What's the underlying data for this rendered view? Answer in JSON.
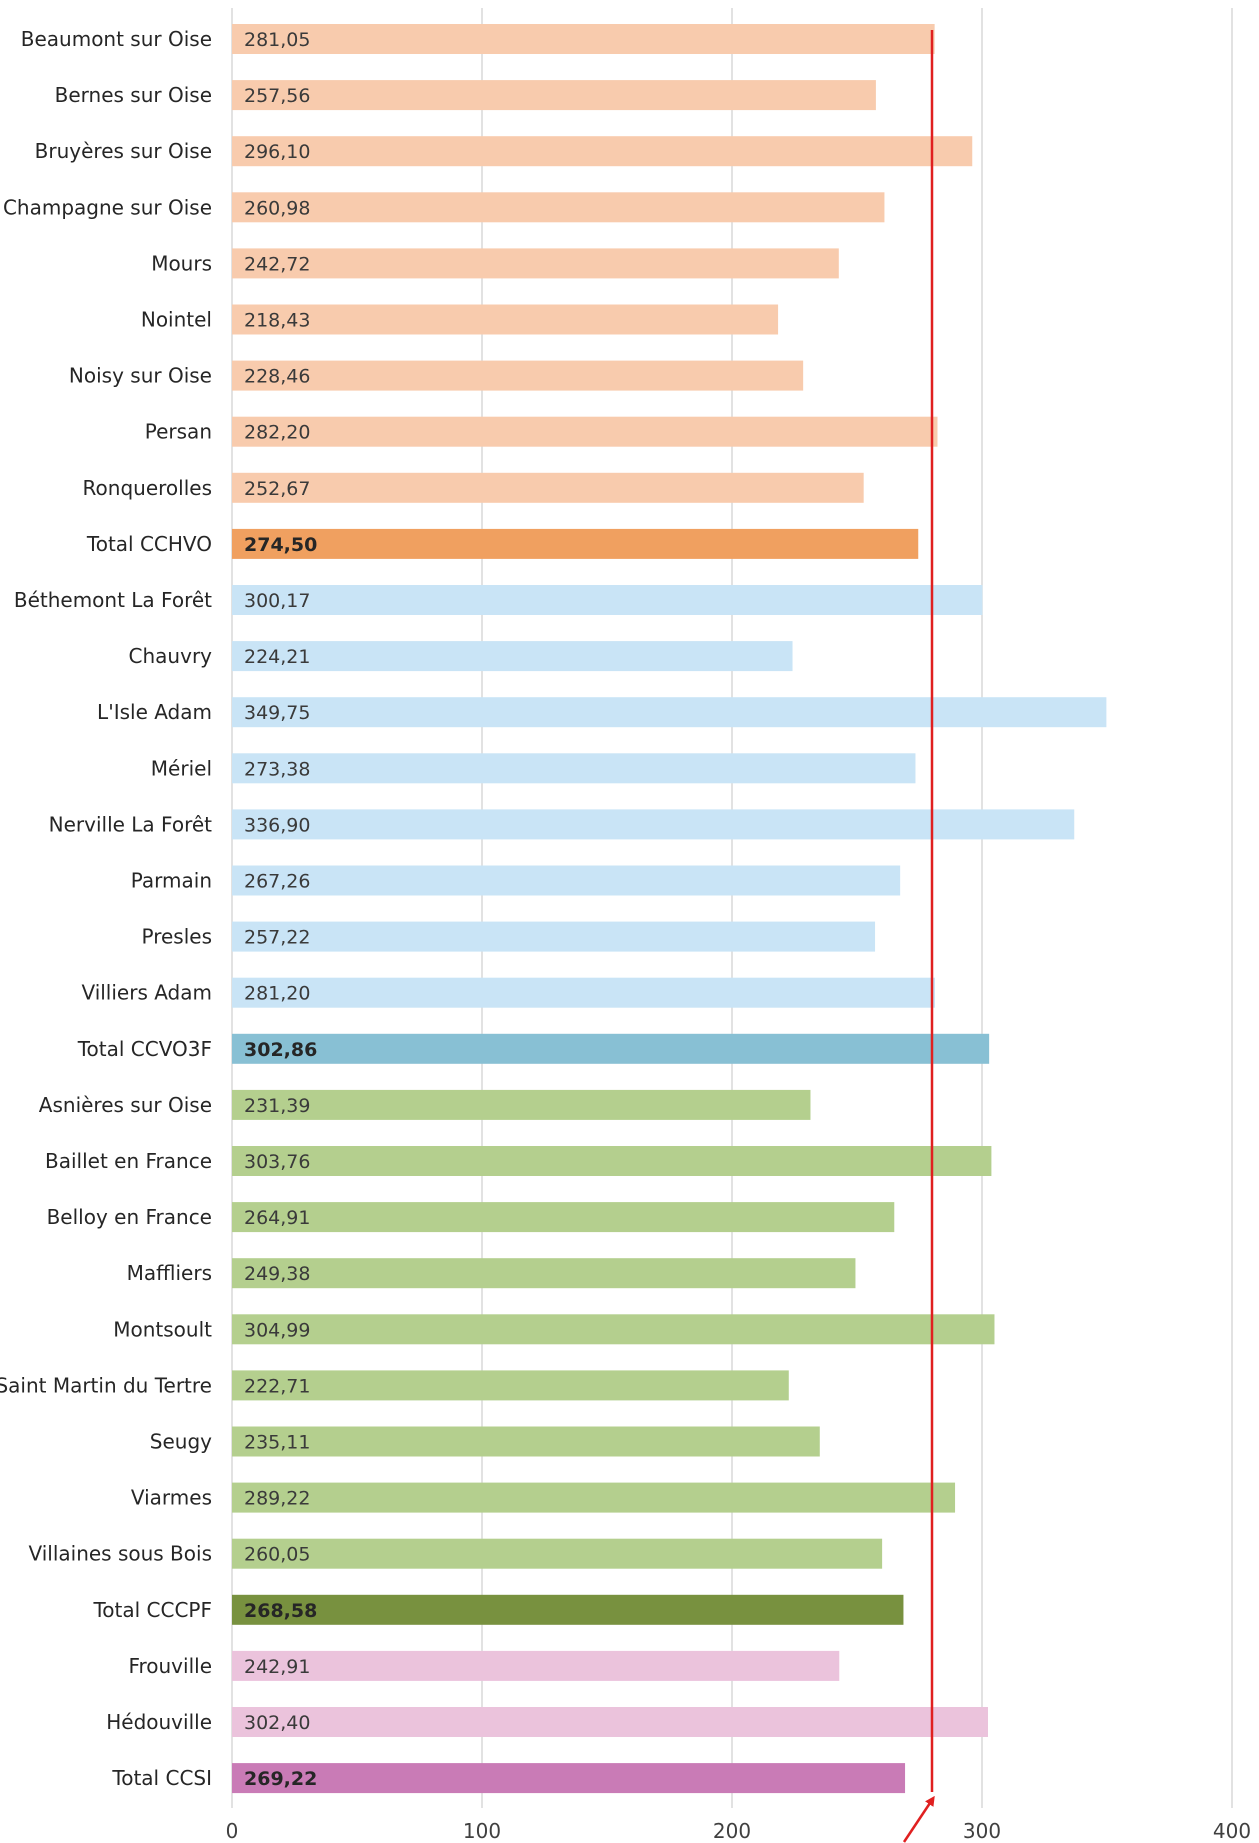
{
  "chart_data": {
    "type": "bar",
    "orientation": "horizontal",
    "categories": [
      "Beaumont sur Oise",
      "Bernes sur Oise",
      "Bruyères sur Oise",
      "Champagne sur Oise",
      "Mours",
      "Nointel",
      "Noisy sur Oise",
      "Persan",
      "Ronquerolles",
      "Total CCHVO",
      "Béthemont La Forêt",
      "Chauvry",
      "L'Isle Adam",
      "Mériel",
      "Nerville La Forêt",
      "Parmain",
      "Presles",
      "Villiers Adam",
      "Total  CCVO3F",
      "Asnières sur Oise",
      "Baillet en France",
      "Belloy en France",
      "Maffliers",
      "Montsoult",
      "Saint Martin du Tertre",
      "Seugy",
      "Viarmes",
      "Villaines sous Bois",
      "Total CCCPF",
      "Frouville",
      "Hédouville",
      "Total CCSI"
    ],
    "values": [
      281.05,
      257.56,
      296.1,
      260.98,
      242.72,
      218.43,
      228.46,
      282.2,
      252.67,
      274.5,
      300.17,
      224.21,
      349.75,
      273.38,
      336.9,
      267.26,
      257.22,
      281.2,
      302.86,
      231.39,
      303.76,
      264.91,
      249.38,
      304.99,
      222.71,
      235.11,
      289.22,
      260.05,
      268.58,
      242.91,
      302.4,
      269.22
    ],
    "value_labels": [
      "281,05",
      "257,56",
      "296,10",
      "260,98",
      "242,72",
      "218,43",
      "228,46",
      "282,20",
      "252,67",
      "274,50",
      "300,17",
      "224,21",
      "349,75",
      "273,38",
      "336,90",
      "267,26",
      "257,22",
      "281,20",
      "302,86",
      "231,39",
      "303,76",
      "264,91",
      "249,38",
      "304,99",
      "222,71",
      "235,11",
      "289,22",
      "260,05",
      "268,58",
      "242,91",
      "302,40",
      "269,22"
    ],
    "groups": [
      {
        "name": "CCHVO",
        "indices": [
          0,
          1,
          2,
          3,
          4,
          5,
          6,
          7,
          8
        ],
        "total_index": 9,
        "color": "#f8cbad",
        "total_color": "#f0a060"
      },
      {
        "name": "CCVO3F",
        "indices": [
          10,
          11,
          12,
          13,
          14,
          15,
          16,
          17
        ],
        "total_index": 18,
        "color": "#c9e4f6",
        "total_color": "#88c0d4"
      },
      {
        "name": "CCCPF",
        "indices": [
          19,
          20,
          21,
          22,
          23,
          24,
          25,
          26,
          27
        ],
        "total_index": 28,
        "color": "#b4cf8e",
        "total_color": "#78913f"
      },
      {
        "name": "CCSI",
        "indices": [
          29,
          30
        ],
        "total_index": 31,
        "color": "#ebc3dc",
        "total_color": "#c97bb6"
      }
    ],
    "x_ticks": [
      "0",
      "100",
      "200",
      "300",
      "400"
    ],
    "xlim": [
      0,
      400
    ],
    "reference_line": {
      "value": 280,
      "color": "#e02020"
    },
    "grid": true,
    "legend": "none",
    "title": "",
    "xlabel": "",
    "ylabel": ""
  }
}
